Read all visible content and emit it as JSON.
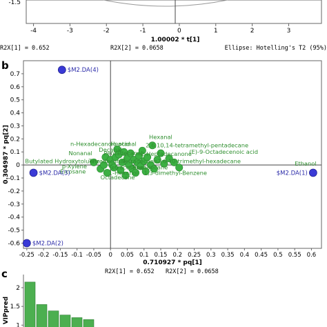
{
  "chart_data": [
    {
      "type": "scatter",
      "panel": "a",
      "xlabel": "1.00002 * t[1]",
      "x_ticks": [
        "-4",
        "-3",
        "-2",
        "-1",
        "0",
        "1",
        "2",
        "3"
      ],
      "y_ticks": [
        "-1.5"
      ],
      "footer": {
        "r2x1": "R2X[1] = 0.652",
        "r2x2": "R2X[2] = 0.0658",
        "ellipse": "Ellipse: Hotelling's T2 (95%)"
      },
      "xlim": [
        -4.2,
        3.9
      ]
    },
    {
      "type": "scatter",
      "panel": "b",
      "panel_label": "b",
      "xlabel": "0.710927 * pq[1]",
      "ylabel": "0.304987 * pq[2]",
      "xlim": [
        -0.26,
        0.63
      ],
      "ylim": [
        -0.64,
        0.8
      ],
      "x_ticks": [
        "-0.25",
        "-0.2",
        "-0.15",
        "-0.1",
        "-0.05",
        "0",
        "0.05",
        "0.1",
        "0.15",
        "0.2",
        "0.25",
        "0.3",
        "0.35",
        "0.4",
        "0.45",
        "0.5",
        "0.55",
        "0.6"
      ],
      "x_tick_values": [
        -0.25,
        -0.2,
        -0.15,
        -0.1,
        -0.05,
        0,
        0.05,
        0.1,
        0.15,
        0.2,
        0.25,
        0.3,
        0.35,
        0.4,
        0.45,
        0.5,
        0.55,
        0.6
      ],
      "y_ticks": [
        "0.7",
        "0.6",
        "0.5",
        "0.4",
        "0.3",
        "0.2",
        "0.1",
        "0",
        "-0.1",
        "-0.2",
        "-0.3",
        "-0.4",
        "-0.5",
        "-0.6"
      ],
      "y_tick_values": [
        0.7,
        0.6,
        0.5,
        0.4,
        0.3,
        0.2,
        0.1,
        0,
        -0.1,
        -0.2,
        -0.3,
        -0.4,
        -0.5,
        -0.6
      ],
      "footer": {
        "r2x1": "R2X[1] = 0.652",
        "r2x2": "R2X[2] = 0.0658"
      },
      "y_series": [
        {
          "label": "$M2.DA(4)",
          "x": -0.145,
          "y": 0.73
        },
        {
          "label": "$M2.DA(3)",
          "x": -0.23,
          "y": -0.06
        },
        {
          "label": "$M2.DA(2)",
          "x": -0.25,
          "y": -0.6
        },
        {
          "label": "$M2.DA(1)",
          "x": 0.605,
          "y": -0.06
        }
      ],
      "x_variables": [
        {
          "x": -0.05,
          "y": 0.02
        },
        {
          "x": -0.03,
          "y": -0.03
        },
        {
          "x": -0.02,
          "y": 0.0
        },
        {
          "x": -0.015,
          "y": 0.06
        },
        {
          "x": -0.01,
          "y": -0.06
        },
        {
          "x": 0.0,
          "y": 0.04
        },
        {
          "x": 0.005,
          "y": 0.0
        },
        {
          "x": 0.01,
          "y": -0.02
        },
        {
          "x": 0.015,
          "y": 0.06
        },
        {
          "x": 0.02,
          "y": 0.12
        },
        {
          "x": 0.025,
          "y": 0.08
        },
        {
          "x": 0.03,
          "y": -0.04
        },
        {
          "x": 0.035,
          "y": 0.02
        },
        {
          "x": 0.04,
          "y": 0.1
        },
        {
          "x": 0.045,
          "y": -0.08
        },
        {
          "x": 0.05,
          "y": 0.05
        },
        {
          "x": 0.055,
          "y": 0.0
        },
        {
          "x": 0.06,
          "y": 0.09
        },
        {
          "x": 0.065,
          "y": -0.03
        },
        {
          "x": 0.07,
          "y": 0.04
        },
        {
          "x": 0.075,
          "y": -0.06
        },
        {
          "x": 0.08,
          "y": 0.02
        },
        {
          "x": 0.085,
          "y": 0.07
        },
        {
          "x": 0.09,
          "y": -0.01
        },
        {
          "x": 0.095,
          "y": 0.11
        },
        {
          "x": 0.1,
          "y": 0.03
        },
        {
          "x": 0.105,
          "y": -0.05
        },
        {
          "x": 0.11,
          "y": 0.06
        },
        {
          "x": 0.12,
          "y": 0.0
        },
        {
          "x": 0.125,
          "y": 0.15
        },
        {
          "x": 0.13,
          "y": -0.03
        },
        {
          "x": 0.14,
          "y": 0.04
        },
        {
          "x": 0.15,
          "y": 0.09
        },
        {
          "x": 0.16,
          "y": 0.01
        },
        {
          "x": 0.175,
          "y": 0.05
        },
        {
          "x": 0.19,
          "y": 0.02
        },
        {
          "x": 0.205,
          "y": -0.02
        }
      ],
      "variable_labels": [
        {
          "text": "Hexanal",
          "x": 0.115,
          "y": 0.2
        },
        {
          "text": "n-Hexadecanoic acid",
          "x": -0.12,
          "y": 0.145
        },
        {
          "text": "Heptanal",
          "x": 0.0,
          "y": 0.145
        },
        {
          "text": "2,6,10,14-tetramethyl-pentadecane",
          "x": 0.105,
          "y": 0.135
        },
        {
          "text": "Decanal",
          "x": -0.035,
          "y": 0.1
        },
        {
          "text": "(E)-9-Octadecenoic acid",
          "x": 0.235,
          "y": 0.085
        },
        {
          "text": "Nonanal",
          "x": -0.125,
          "y": 0.075
        },
        {
          "text": "Pentadecanal",
          "x": -0.02,
          "y": 0.075
        },
        {
          "text": "2-Heptadecanone",
          "x": 0.09,
          "y": 0.07
        },
        {
          "text": "Butylated Hydroxytoluene",
          "x": -0.255,
          "y": 0.015
        },
        {
          "text": "Tetradecanal",
          "x": -0.065,
          "y": 0.015
        },
        {
          "text": "Tetradecane",
          "x": 0.035,
          "y": 0.015
        },
        {
          "text": "2,6,10-trimethyl-hexadecane",
          "x": 0.14,
          "y": 0.015
        },
        {
          "text": "p-Xylene",
          "x": -0.145,
          "y": -0.025
        },
        {
          "text": "Tetracosane",
          "x": -0.005,
          "y": -0.035
        },
        {
          "text": "Hexadecane",
          "x": 0.065,
          "y": -0.035
        },
        {
          "text": "Eicosane",
          "x": -0.15,
          "y": -0.065
        },
        {
          "text": "1-Hexanol",
          "x": -0.005,
          "y": -0.075
        },
        {
          "text": "1,3-dimethyl-Benzene",
          "x": 0.1,
          "y": -0.075
        },
        {
          "text": "Octadecane",
          "x": -0.03,
          "y": -0.11
        },
        {
          "text": "Ethanol",
          "x": 0.55,
          "y": -0.005
        }
      ],
      "colors": {
        "observation": "#3a3ad6",
        "variable": "#3cb043",
        "variable_label": "#2f8f2f",
        "observation_label": "#2a2aa8"
      }
    },
    {
      "type": "bar",
      "panel": "c",
      "panel_label": "c",
      "ylabel": "VIPpred",
      "y_ticks": [
        "2",
        "1.5",
        "1"
      ],
      "y_tick_values": [
        2,
        1.5,
        1
      ],
      "ylim": [
        0.95,
        2.35
      ],
      "values": [
        2.15,
        1.55,
        1.38,
        1.27,
        1.2,
        1.15
      ],
      "color": "#4caf50"
    }
  ]
}
